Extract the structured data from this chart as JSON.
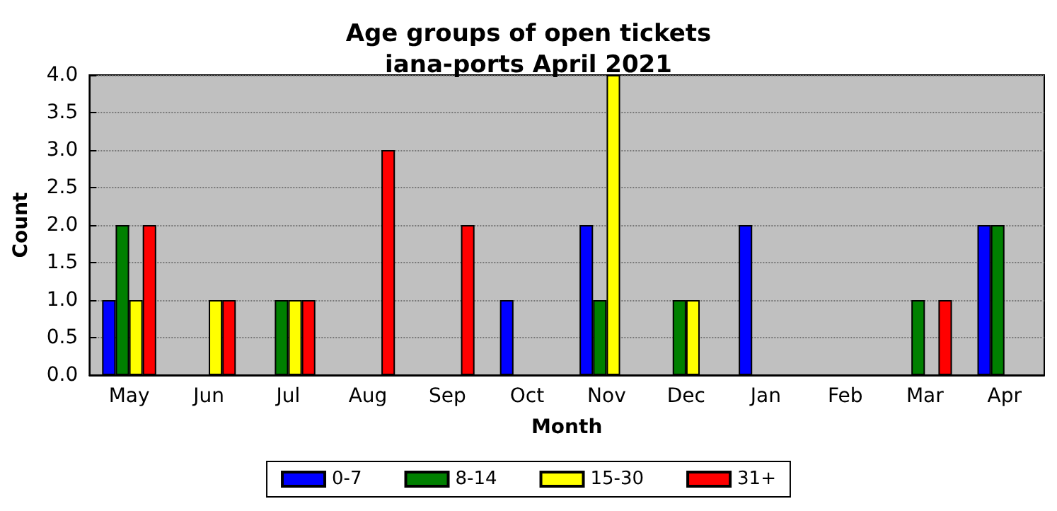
{
  "chart_data": {
    "type": "bar",
    "title": "Age groups of open tickets\niana-ports April 2021",
    "xlabel": "Month",
    "ylabel": "Count",
    "categories": [
      "May",
      "Jun",
      "Jul",
      "Aug",
      "Sep",
      "Oct",
      "Nov",
      "Dec",
      "Jan",
      "Feb",
      "Mar",
      "Apr"
    ],
    "series": [
      {
        "name": "0-7",
        "color": "#0000ff",
        "values": [
          1,
          0,
          0,
          0,
          0,
          1,
          2,
          0,
          2,
          0,
          0,
          2
        ]
      },
      {
        "name": "8-14",
        "color": "#008000",
        "values": [
          2,
          0,
          1,
          0,
          0,
          0,
          1,
          1,
          0,
          0,
          1,
          2
        ]
      },
      {
        "name": "15-30",
        "color": "#ffff00",
        "values": [
          1,
          1,
          1,
          0,
          0,
          0,
          4,
          1,
          0,
          0,
          0,
          0
        ]
      },
      {
        "name": "31+",
        "color": "#ff0000",
        "values": [
          2,
          1,
          1,
          3,
          2,
          0,
          0,
          0,
          0,
          0,
          1,
          0
        ]
      }
    ],
    "ylim": [
      0,
      4
    ],
    "yticks": [
      {
        "value": 0,
        "label": "0.0"
      },
      {
        "value": 0.5,
        "label": "0.5"
      },
      {
        "value": 1,
        "label": "1.0"
      },
      {
        "value": 1.5,
        "label": "1.5"
      },
      {
        "value": 2,
        "label": "2.0"
      },
      {
        "value": 2.5,
        "label": "2.5"
      },
      {
        "value": 3,
        "label": "3.0"
      },
      {
        "value": 3.5,
        "label": "3.5"
      },
      {
        "value": 4,
        "label": "4.0"
      }
    ],
    "grid": "y",
    "legend": "bottom"
  }
}
